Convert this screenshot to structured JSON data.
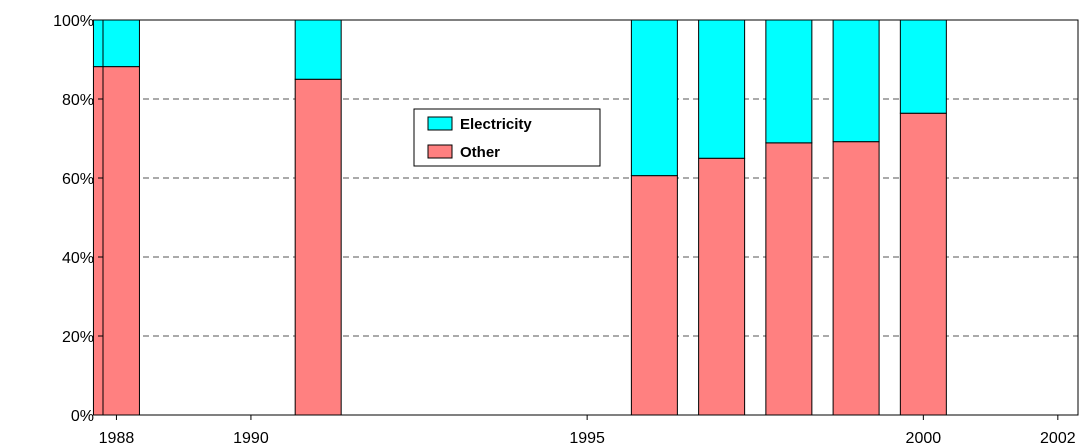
{
  "chart_data": {
    "type": "bar",
    "stacked": true,
    "x": [
      1988,
      1991,
      1996,
      1997,
      1998,
      1999,
      2000
    ],
    "x_ticks": [
      "1988",
      "1990",
      "1995",
      "2000",
      "2002"
    ],
    "x_tick_values": [
      1988,
      1990,
      1995,
      2000,
      2002
    ],
    "xlim": [
      1987.8,
      2002.3
    ],
    "y_ticks": [
      "0%",
      "20%",
      "40%",
      "60%",
      "80%",
      "100%"
    ],
    "ylim": [
      0,
      100
    ],
    "grid": "horizontal-dashed",
    "legend_position": "upper-center",
    "series": [
      {
        "name": "Other",
        "color": "#ff8080",
        "values": [
          88.2,
          85.0,
          60.6,
          65.0,
          68.9,
          69.2,
          76.4
        ]
      },
      {
        "name": "Electricity",
        "color": "#00ffff",
        "values": [
          11.8,
          15.0,
          39.4,
          35.0,
          31.1,
          30.8,
          23.6
        ]
      }
    ]
  }
}
